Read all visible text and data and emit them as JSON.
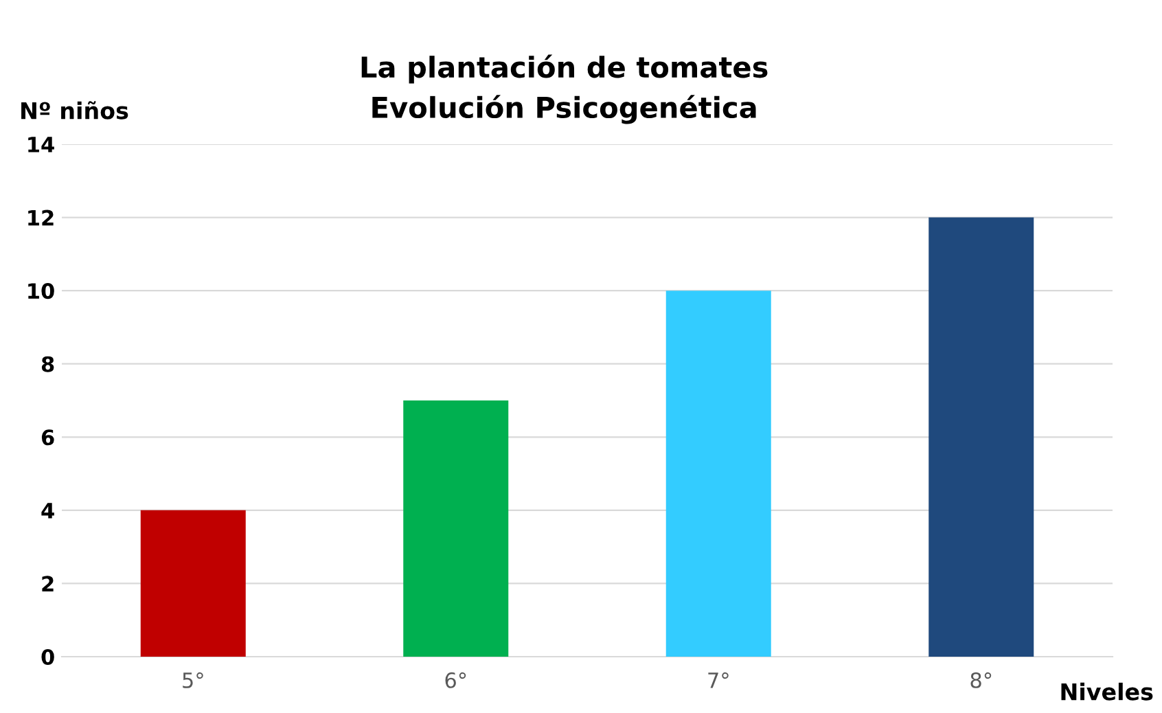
{
  "chart_data": {
    "type": "bar",
    "title": "La plantación de tomates\nEvolución Psicogenética",
    "xlabel": "Niveles",
    "ylabel": "Nº niños",
    "categories": [
      "5°",
      "6°",
      "7°",
      "8°"
    ],
    "values": [
      4,
      7,
      10,
      12
    ],
    "colors": [
      "#c00000",
      "#00b050",
      "#33ccff",
      "#1f497d"
    ],
    "ylim": [
      0,
      14
    ],
    "yticks": [
      0,
      2,
      4,
      6,
      8,
      10,
      12,
      14
    ],
    "grid": "y"
  }
}
